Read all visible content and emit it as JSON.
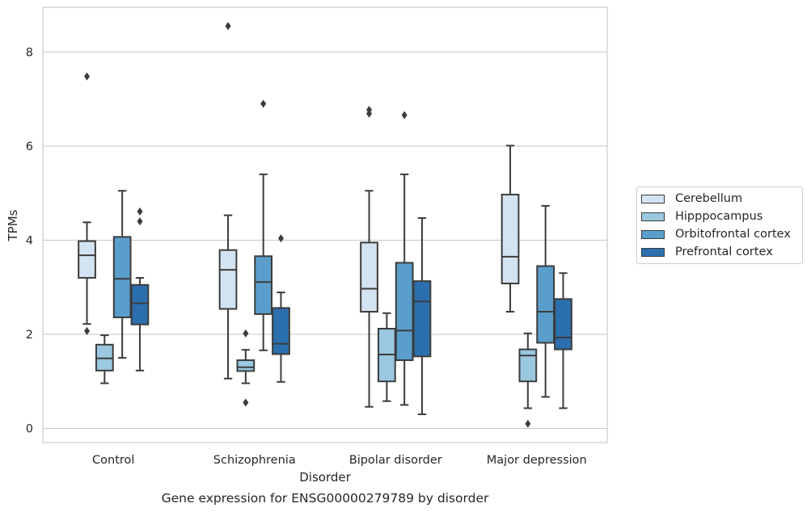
{
  "chart_data": {
    "type": "box",
    "title": "Gene expression for ENSG00000279789 by disorder",
    "xlabel": "Disorder",
    "ylabel": "TPMs",
    "ylim": [
      -0.3,
      8.95
    ],
    "yticks": [
      0,
      2,
      4,
      6,
      8
    ],
    "grid": "horizontal",
    "legend_position": "right",
    "categories": [
      "Control",
      "Schizophrenia",
      "Bipolar disorder",
      "Major depression"
    ],
    "series": [
      {
        "name": "Cerebellum",
        "color": "#d4e3f2",
        "boxes": [
          {
            "whisker_low": 2.22,
            "q1": 3.2,
            "median": 3.68,
            "q3": 3.98,
            "whisker_high": 4.38,
            "outliers": [
              7.48,
              2.07
            ]
          },
          {
            "whisker_low": 1.06,
            "q1": 2.54,
            "median": 3.37,
            "q3": 3.79,
            "whisker_high": 4.53,
            "outliers": [
              8.55
            ]
          },
          {
            "whisker_low": 0.46,
            "q1": 2.48,
            "median": 2.97,
            "q3": 3.95,
            "whisker_high": 5.05,
            "outliers": [
              6.77,
              6.69
            ]
          },
          {
            "whisker_low": 2.48,
            "q1": 3.08,
            "median": 3.65,
            "q3": 4.97,
            "whisker_high": 6.01,
            "outliers": []
          }
        ]
      },
      {
        "name": "Hipppocampus",
        "color": "#9ac8e0",
        "boxes": [
          {
            "whisker_low": 0.96,
            "q1": 1.23,
            "median": 1.49,
            "q3": 1.78,
            "whisker_high": 1.98,
            "outliers": []
          },
          {
            "whisker_low": 0.96,
            "q1": 1.22,
            "median": 1.3,
            "q3": 1.45,
            "whisker_high": 1.67,
            "outliers": [
              2.02,
              0.55
            ]
          },
          {
            "whisker_low": 0.58,
            "q1": 1.0,
            "median": 1.57,
            "q3": 2.12,
            "whisker_high": 2.45,
            "outliers": []
          },
          {
            "whisker_low": 0.43,
            "q1": 1.0,
            "median": 1.55,
            "q3": 1.68,
            "whisker_high": 2.02,
            "outliers": [
              0.1
            ]
          }
        ]
      },
      {
        "name": "Orbitofrontal cortex",
        "color": "#5a9ecb",
        "boxes": [
          {
            "whisker_low": 1.5,
            "q1": 2.36,
            "median": 3.18,
            "q3": 4.07,
            "whisker_high": 5.05,
            "outliers": []
          },
          {
            "whisker_low": 1.66,
            "q1": 2.43,
            "median": 3.11,
            "q3": 3.66,
            "whisker_high": 5.4,
            "outliers": [
              6.9
            ]
          },
          {
            "whisker_low": 0.5,
            "q1": 1.45,
            "median": 2.08,
            "q3": 3.52,
            "whisker_high": 5.4,
            "outliers": [
              6.66
            ]
          },
          {
            "whisker_low": 0.67,
            "q1": 1.82,
            "median": 2.48,
            "q3": 3.45,
            "whisker_high": 4.73,
            "outliers": []
          }
        ]
      },
      {
        "name": "Prefrontal cortex",
        "color": "#2b6fae",
        "boxes": [
          {
            "whisker_low": 1.23,
            "q1": 2.21,
            "median": 2.66,
            "q3": 3.05,
            "whisker_high": 3.2,
            "outliers": [
              4.61,
              4.4
            ]
          },
          {
            "whisker_low": 0.99,
            "q1": 1.58,
            "median": 1.8,
            "q3": 2.56,
            "whisker_high": 2.89,
            "outliers": [
              4.04
            ]
          },
          {
            "whisker_low": 0.3,
            "q1": 1.53,
            "median": 2.7,
            "q3": 3.13,
            "whisker_high": 4.47,
            "outliers": []
          },
          {
            "whisker_low": 0.43,
            "q1": 1.68,
            "median": 1.93,
            "q3": 2.75,
            "whisker_high": 3.3,
            "outliers": []
          }
        ]
      }
    ]
  }
}
